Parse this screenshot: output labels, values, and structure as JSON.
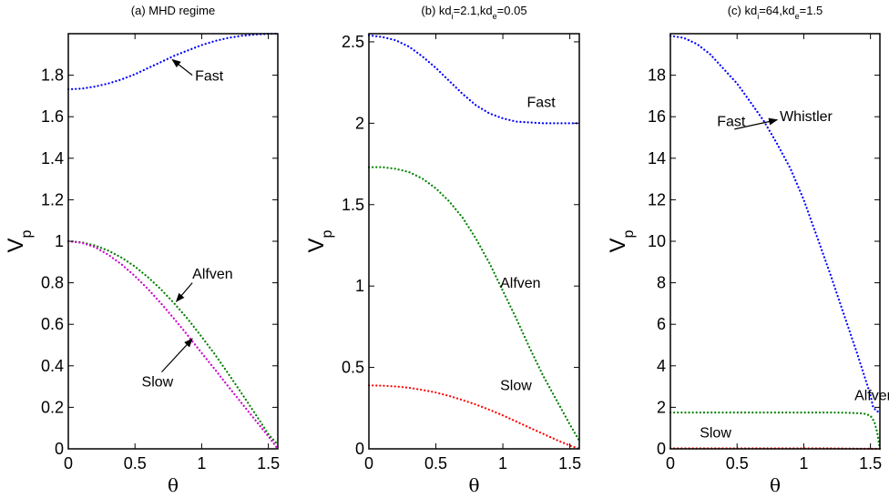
{
  "colors": {
    "fast": "#0000ff",
    "alfven": "#008000",
    "slow_a": "#cc00cc",
    "slow_bc": "#ff0000",
    "axis": "#000000"
  },
  "chart_data": [
    {
      "type": "line",
      "title": "(a) MHD regime",
      "title_parts": [
        {
          "text": "(a) MHD regime",
          "sub": false
        }
      ],
      "xlabel": "θ",
      "ylabel": "V",
      "ylabel_sub": "p",
      "xlim": [
        0,
        1.5708
      ],
      "ylim": [
        0,
        2.0
      ],
      "xticks": [
        {
          "v": 0,
          "label": "0"
        },
        {
          "v": 0.5,
          "label": "0.5"
        },
        {
          "v": 1,
          "label": "1"
        },
        {
          "v": 1.5,
          "label": "1.5"
        }
      ],
      "yticks": [
        {
          "v": 0,
          "label": "0"
        },
        {
          "v": 0.2,
          "label": "0.2"
        },
        {
          "v": 0.4,
          "label": "0.4"
        },
        {
          "v": 0.6,
          "label": "0.6"
        },
        {
          "v": 0.8,
          "label": "0.8"
        },
        {
          "v": 1.0,
          "label": "1"
        },
        {
          "v": 1.2,
          "label": "1.2"
        },
        {
          "v": 1.4,
          "label": "1.4"
        },
        {
          "v": 1.6,
          "label": "1.6"
        },
        {
          "v": 1.8,
          "label": "1.8"
        }
      ],
      "series": [
        {
          "color": "fast",
          "x": [
            0,
            0.1,
            0.2,
            0.3,
            0.4,
            0.5,
            0.6,
            0.7,
            0.8,
            0.9,
            1.0,
            1.1,
            1.2,
            1.3,
            1.4,
            1.5,
            1.5708
          ],
          "y": [
            1.732,
            1.735,
            1.745,
            1.76,
            1.78,
            1.805,
            1.835,
            1.865,
            1.895,
            1.92,
            1.945,
            1.965,
            1.98,
            1.99,
            1.996,
            1.999,
            2.0
          ]
        },
        {
          "color": "alfven",
          "x": [
            0,
            0.1,
            0.2,
            0.3,
            0.4,
            0.5,
            0.6,
            0.7,
            0.8,
            0.9,
            1.0,
            1.1,
            1.2,
            1.3,
            1.4,
            1.5,
            1.5708
          ],
          "y": [
            1.0,
            0.995,
            0.98,
            0.955,
            0.921,
            0.878,
            0.825,
            0.765,
            0.697,
            0.622,
            0.54,
            0.454,
            0.362,
            0.267,
            0.17,
            0.071,
            0.02
          ]
        },
        {
          "color": "slow_a",
          "x": [
            0,
            0.1,
            0.2,
            0.3,
            0.4,
            0.5,
            0.6,
            0.7,
            0.8,
            0.9,
            1.0,
            1.1,
            1.2,
            1.3,
            1.4,
            1.5,
            1.5708
          ],
          "y": [
            1.0,
            0.993,
            0.972,
            0.935,
            0.888,
            0.832,
            0.768,
            0.697,
            0.622,
            0.543,
            0.462,
            0.382,
            0.3,
            0.22,
            0.14,
            0.06,
            0.0
          ]
        }
      ],
      "annotations": [
        {
          "text": "Fast",
          "x": 0.95,
          "y": 1.775,
          "ax": 0.78,
          "ay": 1.87
        },
        {
          "text": "Alfven",
          "x": 0.93,
          "y": 0.82,
          "ax": 0.81,
          "ay": 0.72
        },
        {
          "text": "Slow",
          "x": 0.55,
          "y": 0.3,
          "ax": 0.96,
          "ay": 0.52
        }
      ]
    },
    {
      "type": "line",
      "title": "(b) kdi=2.1,kde=0.05",
      "title_parts": [
        {
          "text": "(b) kd",
          "sub": false
        },
        {
          "text": "i",
          "sub": true
        },
        {
          "text": "=2.1,kd",
          "sub": false
        },
        {
          "text": "e",
          "sub": true
        },
        {
          "text": "=0.05",
          "sub": false
        }
      ],
      "xlabel": "θ",
      "ylabel": "V",
      "ylabel_sub": "p",
      "xlim": [
        0,
        1.5708
      ],
      "ylim": [
        0,
        2.55
      ],
      "xticks": [
        {
          "v": 0,
          "label": "0"
        },
        {
          "v": 0.5,
          "label": "0.5"
        },
        {
          "v": 1,
          "label": "1"
        },
        {
          "v": 1.5,
          "label": "1.5"
        }
      ],
      "yticks": [
        {
          "v": 0,
          "label": "0"
        },
        {
          "v": 0.5,
          "label": "0.5"
        },
        {
          "v": 1.0,
          "label": "1"
        },
        {
          "v": 1.5,
          "label": "1.5"
        },
        {
          "v": 2.0,
          "label": "2"
        },
        {
          "v": 2.5,
          "label": "2.5"
        }
      ],
      "series": [
        {
          "color": "fast",
          "x": [
            0,
            0.1,
            0.2,
            0.3,
            0.4,
            0.5,
            0.6,
            0.7,
            0.8,
            0.9,
            1.0,
            1.1,
            1.2,
            1.3,
            1.4,
            1.5,
            1.5708
          ],
          "y": [
            2.54,
            2.53,
            2.51,
            2.47,
            2.41,
            2.34,
            2.26,
            2.18,
            2.11,
            2.06,
            2.03,
            2.01,
            2.005,
            2.0,
            2.0,
            2.0,
            2.0
          ]
        },
        {
          "color": "alfven",
          "x": [
            0,
            0.1,
            0.2,
            0.3,
            0.4,
            0.5,
            0.6,
            0.7,
            0.8,
            0.9,
            1.0,
            1.1,
            1.2,
            1.3,
            1.4,
            1.5,
            1.5708
          ],
          "y": [
            1.73,
            1.73,
            1.72,
            1.7,
            1.66,
            1.6,
            1.52,
            1.42,
            1.29,
            1.14,
            0.97,
            0.8,
            0.62,
            0.45,
            0.3,
            0.15,
            0.05
          ]
        },
        {
          "color": "slow_bc",
          "x": [
            0,
            0.1,
            0.2,
            0.3,
            0.4,
            0.5,
            0.6,
            0.7,
            0.8,
            0.9,
            1.0,
            1.1,
            1.2,
            1.3,
            1.4,
            1.5,
            1.5708
          ],
          "y": [
            0.39,
            0.388,
            0.383,
            0.375,
            0.362,
            0.346,
            0.325,
            0.3,
            0.272,
            0.24,
            0.205,
            0.168,
            0.13,
            0.092,
            0.055,
            0.02,
            0.0
          ]
        }
      ],
      "annotations": [
        {
          "text": "Fast",
          "x": 1.18,
          "y": 2.1
        },
        {
          "text": "Alfven",
          "x": 0.98,
          "y": 0.99
        },
        {
          "text": "Slow",
          "x": 0.98,
          "y": 0.36
        }
      ]
    },
    {
      "type": "line",
      "title": "(c) kdi=64,kde=1.5",
      "title_parts": [
        {
          "text": "(c) kd",
          "sub": false
        },
        {
          "text": "i",
          "sub": true
        },
        {
          "text": "=64,kd",
          "sub": false
        },
        {
          "text": "e",
          "sub": true
        },
        {
          "text": "=1.5",
          "sub": false
        }
      ],
      "xlabel": "θ",
      "ylabel": "V",
      "ylabel_sub": "p",
      "xlim": [
        0,
        1.5708
      ],
      "ylim": [
        0,
        20
      ],
      "xticks": [
        {
          "v": 0,
          "label": "0"
        },
        {
          "v": 0.5,
          "label": "0.5"
        },
        {
          "v": 1,
          "label": "1"
        },
        {
          "v": 1.5,
          "label": "1.5"
        }
      ],
      "yticks": [
        {
          "v": 0,
          "label": "0"
        },
        {
          "v": 2,
          "label": "2"
        },
        {
          "v": 4,
          "label": "4"
        },
        {
          "v": 6,
          "label": "6"
        },
        {
          "v": 8,
          "label": "8"
        },
        {
          "v": 10,
          "label": "10"
        },
        {
          "v": 12,
          "label": "12"
        },
        {
          "v": 14,
          "label": "14"
        },
        {
          "v": 16,
          "label": "16"
        },
        {
          "v": 18,
          "label": "18"
        }
      ],
      "series": [
        {
          "color": "fast",
          "x": [
            0,
            0.1,
            0.2,
            0.3,
            0.4,
            0.5,
            0.6,
            0.7,
            0.8,
            0.9,
            1.0,
            1.1,
            1.2,
            1.3,
            1.4,
            1.5,
            1.52,
            1.55,
            1.5708
          ],
          "y": [
            19.9,
            19.8,
            19.5,
            19.0,
            18.3,
            17.6,
            16.7,
            15.8,
            14.7,
            13.5,
            12.0,
            10.2,
            8.4,
            6.5,
            4.6,
            2.6,
            2.0,
            1.8,
            1.8
          ]
        },
        {
          "color": "alfven",
          "x": [
            0,
            0.1,
            0.2,
            0.3,
            0.4,
            0.5,
            0.6,
            0.7,
            0.8,
            0.9,
            1.0,
            1.1,
            1.2,
            1.3,
            1.4,
            1.45,
            1.5,
            1.53,
            1.55,
            1.5708
          ],
          "y": [
            1.75,
            1.75,
            1.75,
            1.75,
            1.75,
            1.75,
            1.75,
            1.75,
            1.75,
            1.75,
            1.75,
            1.75,
            1.75,
            1.74,
            1.72,
            1.7,
            1.6,
            1.3,
            0.8,
            0.0
          ]
        },
        {
          "color": "slow_bc",
          "x": [
            0,
            0.2,
            0.4,
            0.6,
            0.8,
            1.0,
            1.2,
            1.4,
            1.5708
          ],
          "y": [
            0.02,
            0.02,
            0.02,
            0.02,
            0.02,
            0.02,
            0.02,
            0.01,
            0.0
          ]
        }
      ],
      "annotations": [
        {
          "text": "Fast",
          "x": 0.35,
          "y": 15.55
        },
        {
          "text": "Whistler",
          "x": 0.82,
          "y": 15.8,
          "ax": 0.8,
          "ay": 15.8,
          "bx": 0.47,
          "by": 15.45
        },
        {
          "text": "Alfven",
          "x": 1.38,
          "y": 2.35
        },
        {
          "text": "Slow",
          "x": 0.22,
          "y": 0.55
        }
      ]
    }
  ]
}
